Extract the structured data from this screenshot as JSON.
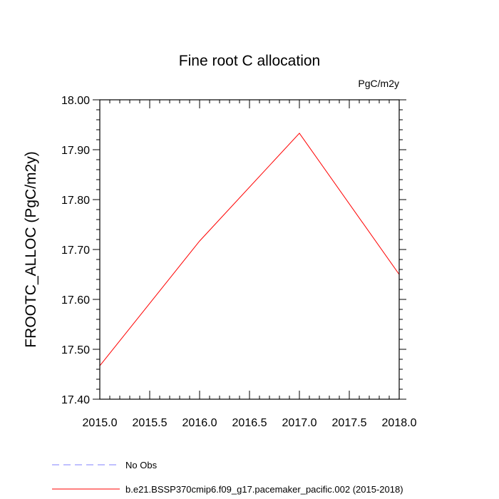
{
  "chart_data": {
    "type": "line",
    "title": "Fine root C allocation",
    "units": "PgC/m2y",
    "xlabel": "",
    "ylabel": "FROOTC_ALLOC  (PgC/m2y)",
    "xlim": [
      2015.0,
      2018.0
    ],
    "ylim": [
      17.4,
      18.0
    ],
    "xticks": [
      2015.0,
      2015.5,
      2016.0,
      2016.5,
      2017.0,
      2017.5,
      2018.0
    ],
    "xtick_labels": [
      "2015.0",
      "2015.5",
      "2016.0",
      "2016.5",
      "2017.0",
      "2017.5",
      "2018.0"
    ],
    "yticks": [
      17.4,
      17.5,
      17.6,
      17.7,
      17.8,
      17.9,
      18.0
    ],
    "ytick_labels": [
      "17.40",
      "17.50",
      "17.60",
      "17.70",
      "17.80",
      "17.90",
      "18.00"
    ],
    "grid": false,
    "legend_position": "bottom",
    "series": [
      {
        "name": "b.e21.BSSP370cmip6.f09_g17.pacemaker_pacific.002 (2015-2018)",
        "color": "#ff0000",
        "dash": "solid",
        "x": [
          2015.0,
          2016.0,
          2017.0,
          2018.0
        ],
        "y": [
          17.467,
          17.717,
          17.933,
          17.65
        ]
      }
    ],
    "legend": [
      {
        "label": "No Obs",
        "color": "#8080ff",
        "dash": "dashed"
      },
      {
        "label": "b.e21.BSSP370cmip6.f09_g17.pacemaker_pacific.002 (2015-2018)",
        "color": "#ff0000",
        "dash": "solid"
      }
    ]
  }
}
